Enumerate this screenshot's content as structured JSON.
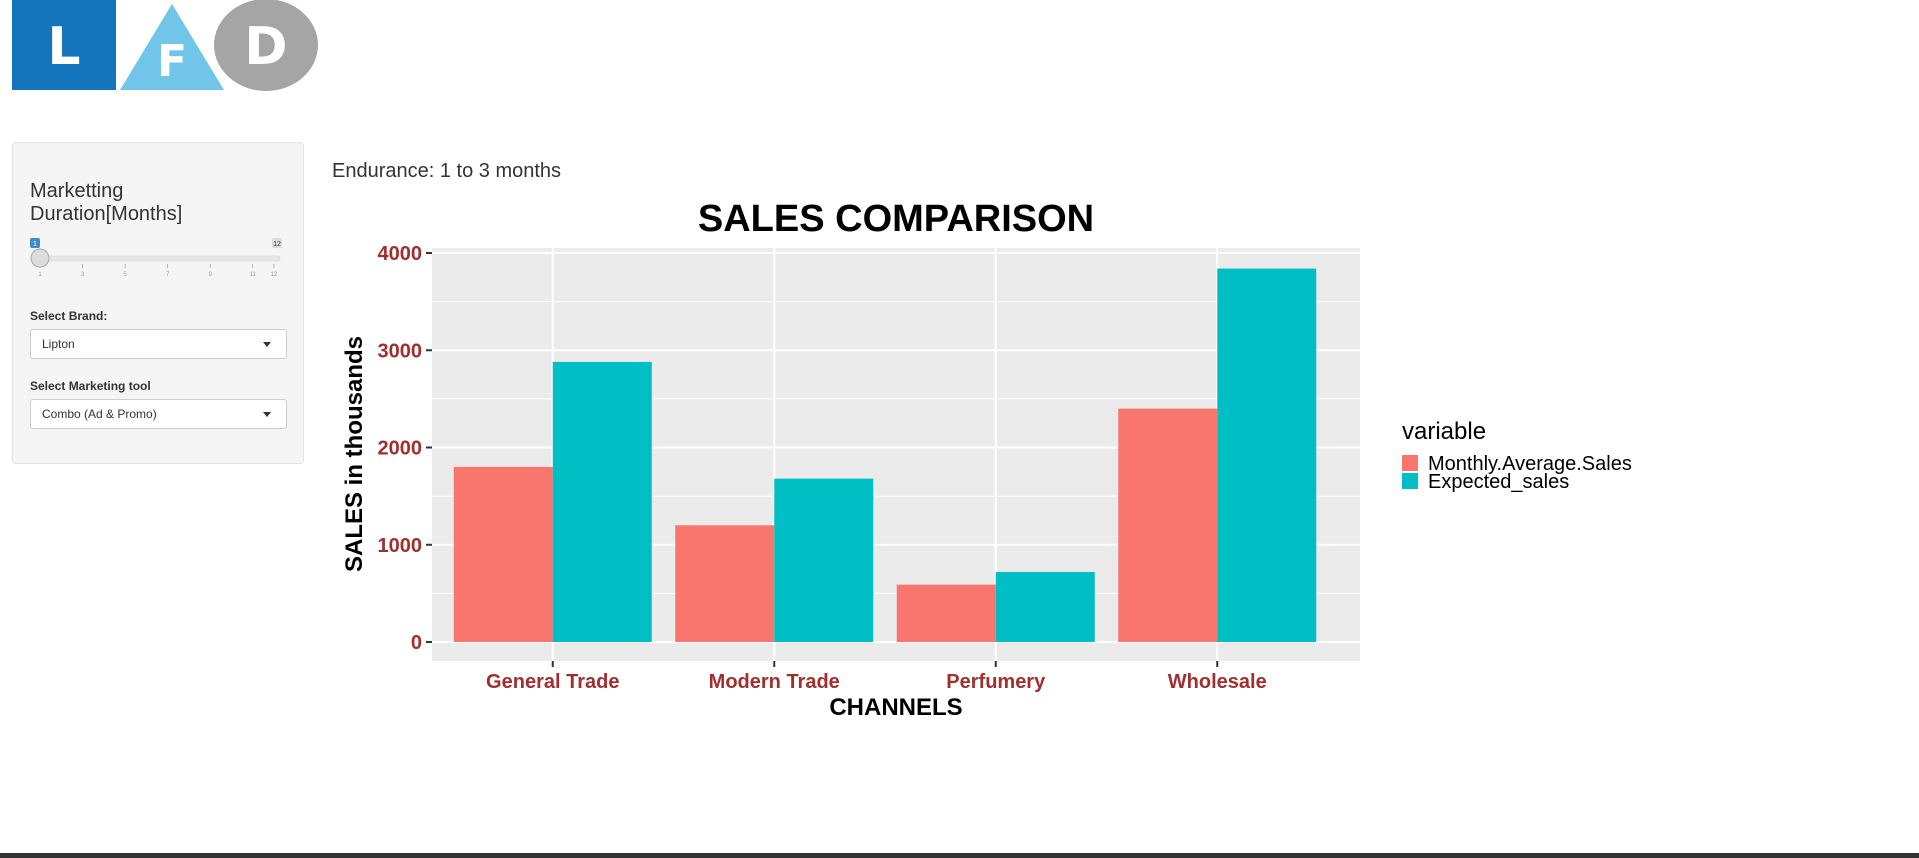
{
  "logo": {
    "letters": [
      "L",
      "F",
      "D"
    ],
    "colors": [
      "#1575bc",
      "#71c5e8",
      "#a5a5a5"
    ]
  },
  "sidebar": {
    "slider": {
      "label": "Marketting Duration[Months]",
      "value": "1",
      "min": 1,
      "max": "12",
      "ticks": [
        "1",
        "3",
        "5",
        "7",
        "9",
        "11",
        "12"
      ]
    },
    "brand": {
      "label": "Select Brand:",
      "value": "Lipton"
    },
    "tool": {
      "label": "Select Marketing tool",
      "value": "Combo (Ad & Promo)"
    }
  },
  "main": {
    "endurance_text": "Endurance: 1 to 3 months"
  },
  "chart_data": {
    "type": "bar",
    "title": "SALES COMPARISON",
    "xlabel": "CHANNELS",
    "ylabel": "SALES in thousands",
    "categories": [
      "General Trade",
      "Modern Trade",
      "Perfumery",
      "Wholesale"
    ],
    "series": [
      {
        "name": "Monthly.Average.Sales",
        "values": [
          1800,
          1200,
          590,
          2400
        ],
        "color": "#f8766d"
      },
      {
        "name": "Expected_sales",
        "values": [
          2880,
          1680,
          720,
          3840
        ],
        "color": "#00bfc4"
      }
    ],
    "ylim": [
      0,
      4000
    ],
    "yticks": [
      "0",
      "1000",
      "2000",
      "3000",
      "4000"
    ],
    "legend_title": "variable",
    "legend_position": "right",
    "grid": true,
    "tick_label_color": "#a0302f"
  }
}
